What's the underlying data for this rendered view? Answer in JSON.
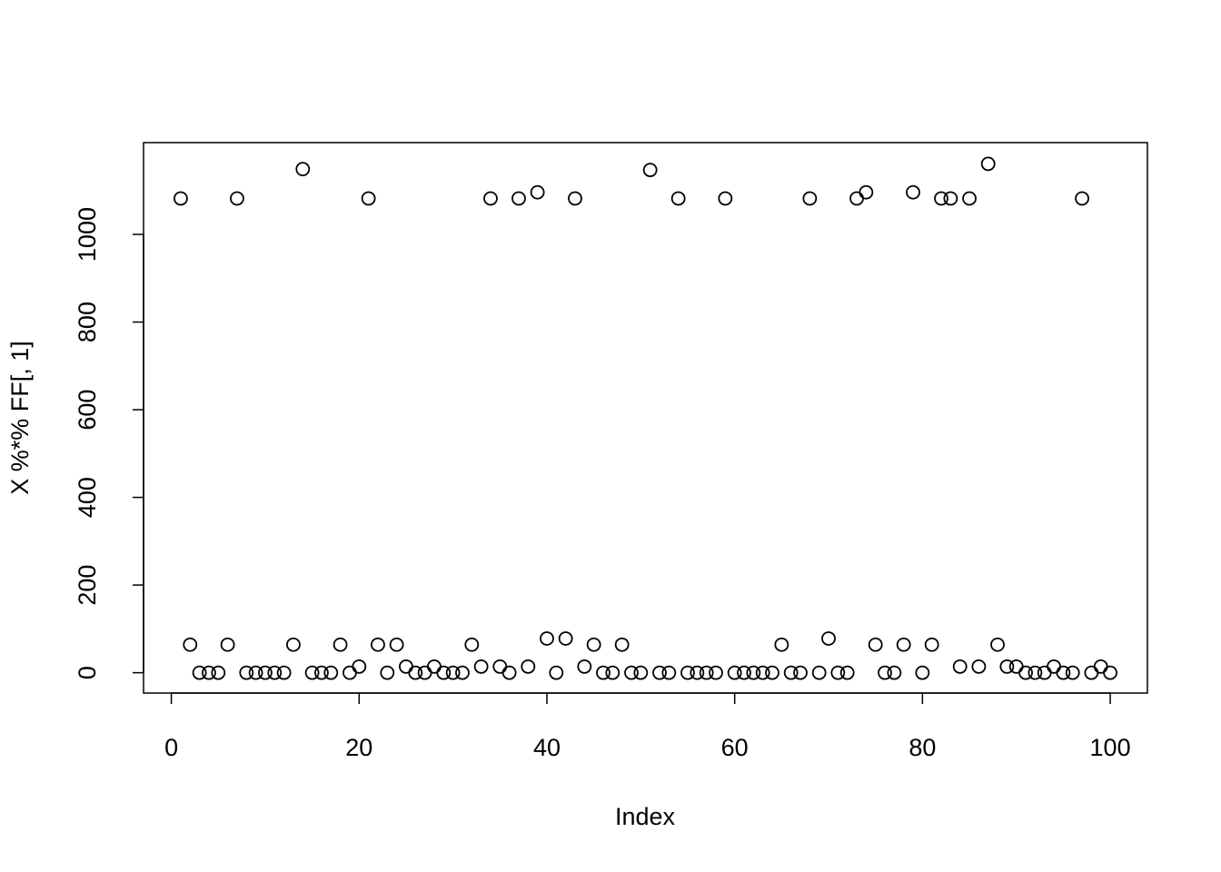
{
  "chart_data": {
    "type": "scatter",
    "x_label": "Index",
    "y_label": "X %*% FF[, 1]",
    "x": [
      1,
      2,
      3,
      4,
      5,
      6,
      7,
      8,
      9,
      10,
      11,
      12,
      13,
      14,
      15,
      16,
      17,
      18,
      19,
      20,
      21,
      22,
      23,
      24,
      25,
      26,
      27,
      28,
      29,
      30,
      31,
      32,
      33,
      34,
      35,
      36,
      37,
      38,
      39,
      40,
      41,
      42,
      43,
      44,
      45,
      46,
      47,
      48,
      49,
      50,
      51,
      52,
      53,
      54,
      55,
      56,
      57,
      58,
      59,
      60,
      61,
      62,
      63,
      64,
      65,
      66,
      67,
      68,
      69,
      70,
      71,
      72,
      73,
      74,
      75,
      76,
      77,
      78,
      79,
      80,
      81,
      82,
      83,
      84,
      85,
      86,
      87,
      88,
      89,
      90,
      91,
      92,
      93,
      94,
      95,
      96,
      97,
      98,
      99,
      100
    ],
    "values": [
      1082,
      64,
      0,
      0,
      0,
      64,
      1082,
      0,
      0,
      0,
      0,
      0,
      64,
      1149,
      0,
      0,
      0,
      64,
      0,
      14,
      1082,
      64,
      0,
      64,
      14,
      0,
      0,
      14,
      0,
      0,
      0,
      64,
      14,
      1082,
      14,
      0,
      1082,
      14,
      1096,
      78,
      0,
      78,
      1082,
      14,
      64,
      0,
      0,
      64,
      0,
      0,
      1147,
      0,
      0,
      1082,
      0,
      0,
      0,
      0,
      1082,
      0,
      0,
      0,
      0,
      0,
      64,
      0,
      0,
      1082,
      0,
      78,
      0,
      0,
      1082,
      1096,
      64,
      0,
      0,
      64,
      1096,
      0,
      64,
      1082,
      1082,
      14,
      1082,
      14,
      1161,
      64,
      14,
      14,
      0,
      0,
      0,
      14,
      0,
      0,
      1082,
      0,
      14,
      0
    ],
    "color": "#000000",
    "xlim": [
      -2.96,
      103.96
    ],
    "ylim": [
      -46.4,
      1209.4
    ],
    "xticks": [
      0,
      20,
      40,
      60,
      80,
      100
    ],
    "yticks": [
      0,
      200,
      400,
      600,
      800,
      1000
    ],
    "grid": false
  }
}
